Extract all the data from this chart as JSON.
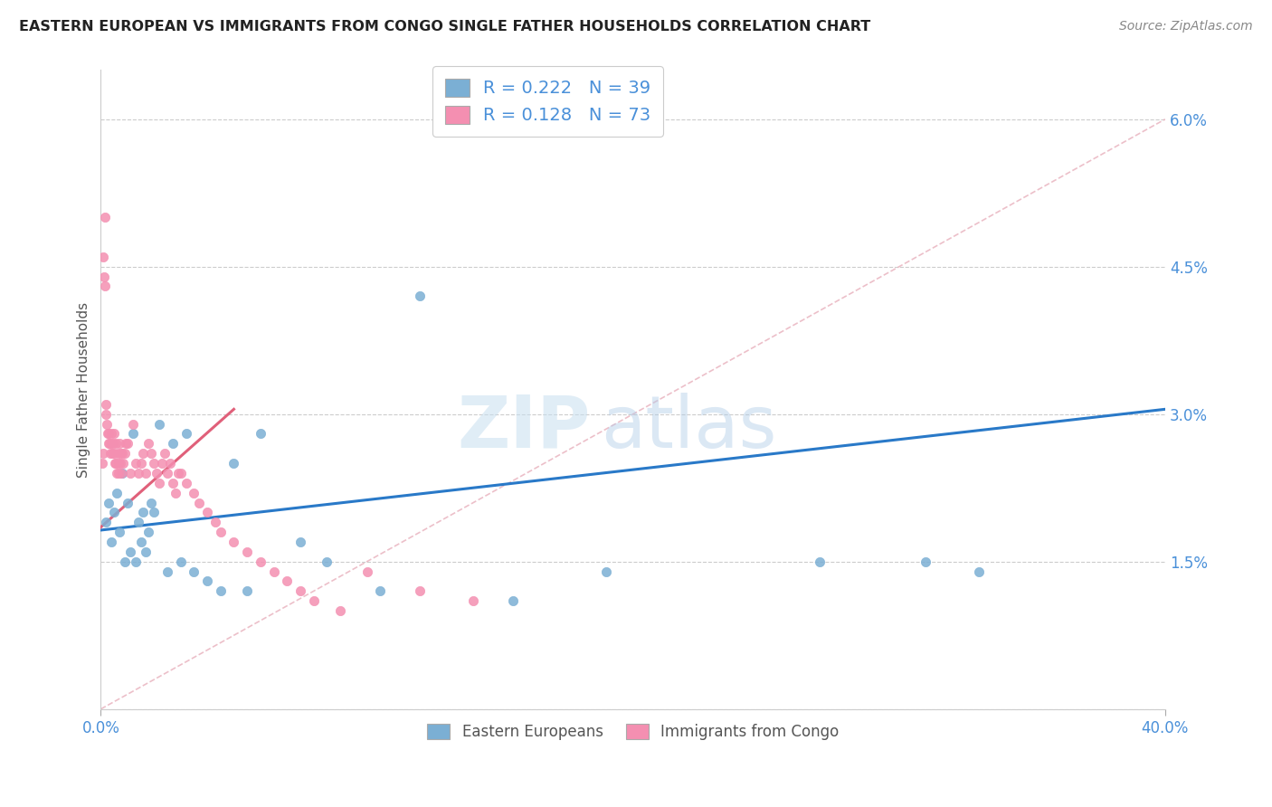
{
  "title": "EASTERN EUROPEAN VS IMMIGRANTS FROM CONGO SINGLE FATHER HOUSEHOLDS CORRELATION CHART",
  "source": "Source: ZipAtlas.com",
  "ylabel": "Single Father Households",
  "watermark_zip": "ZIP",
  "watermark_atlas": "atlas",
  "legend_r1": "R = 0.222   N = 39",
  "legend_r2": "R = 0.128   N = 73",
  "xlim": [
    0.0,
    40.0
  ],
  "ylim": [
    0.0,
    6.5
  ],
  "yticks": [
    0.0,
    1.5,
    3.0,
    4.5,
    6.0
  ],
  "ytick_labels": [
    "",
    "1.5%",
    "3.0%",
    "4.5%",
    "6.0%"
  ],
  "blue_scatter_x": [
    0.2,
    0.3,
    0.4,
    0.5,
    0.6,
    0.7,
    0.8,
    0.9,
    1.0,
    1.1,
    1.2,
    1.3,
    1.4,
    1.5,
    1.6,
    1.7,
    1.8,
    1.9,
    2.0,
    2.2,
    2.5,
    2.7,
    3.0,
    3.2,
    3.5,
    4.0,
    4.5,
    5.0,
    5.5,
    6.0,
    7.5,
    8.5,
    10.5,
    12.0,
    15.5,
    19.0,
    27.0,
    31.0,
    33.0
  ],
  "blue_scatter_y": [
    1.9,
    2.1,
    1.7,
    2.0,
    2.2,
    1.8,
    2.4,
    1.5,
    2.1,
    1.6,
    2.8,
    1.5,
    1.9,
    1.7,
    2.0,
    1.6,
    1.8,
    2.1,
    2.0,
    2.9,
    1.4,
    2.7,
    1.5,
    2.8,
    1.4,
    1.3,
    1.2,
    2.5,
    1.2,
    2.8,
    1.7,
    1.5,
    1.2,
    4.2,
    1.1,
    1.4,
    1.5,
    1.5,
    1.4
  ],
  "pink_scatter_x": [
    0.05,
    0.08,
    0.1,
    0.12,
    0.15,
    0.18,
    0.2,
    0.22,
    0.25,
    0.28,
    0.3,
    0.32,
    0.35,
    0.38,
    0.4,
    0.42,
    0.45,
    0.48,
    0.5,
    0.52,
    0.55,
    0.58,
    0.6,
    0.62,
    0.65,
    0.68,
    0.7,
    0.72,
    0.75,
    0.78,
    0.8,
    0.85,
    0.9,
    0.95,
    1.0,
    1.1,
    1.2,
    1.3,
    1.4,
    1.5,
    1.6,
    1.7,
    1.8,
    1.9,
    2.0,
    2.1,
    2.2,
    2.3,
    2.4,
    2.5,
    2.6,
    2.7,
    2.8,
    2.9,
    3.0,
    3.2,
    3.5,
    3.7,
    4.0,
    4.3,
    4.5,
    5.0,
    5.5,
    6.0,
    6.5,
    7.0,
    7.5,
    8.0,
    9.0,
    10.0,
    12.0,
    14.0,
    0.15
  ],
  "pink_scatter_y": [
    2.5,
    2.6,
    4.6,
    4.4,
    4.3,
    3.1,
    3.0,
    2.9,
    2.8,
    2.7,
    2.8,
    2.7,
    2.6,
    2.8,
    2.7,
    2.6,
    2.7,
    2.8,
    2.6,
    2.5,
    2.7,
    2.5,
    2.4,
    2.6,
    2.5,
    2.4,
    2.7,
    2.6,
    2.5,
    2.4,
    2.6,
    2.5,
    2.6,
    2.7,
    2.7,
    2.4,
    2.9,
    2.5,
    2.4,
    2.5,
    2.6,
    2.4,
    2.7,
    2.6,
    2.5,
    2.4,
    2.3,
    2.5,
    2.6,
    2.4,
    2.5,
    2.3,
    2.2,
    2.4,
    2.4,
    2.3,
    2.2,
    2.1,
    2.0,
    1.9,
    1.8,
    1.7,
    1.6,
    1.5,
    1.4,
    1.3,
    1.2,
    1.1,
    1.0,
    1.4,
    1.2,
    1.1,
    5.0
  ],
  "blue_scatter_x_outlier": [
    11.5
  ],
  "blue_scatter_y_outlier": [
    4.2
  ],
  "blue_color": "#7bafd4",
  "pink_color": "#f48fb1",
  "blue_line_color": "#2979c8",
  "pink_line_color": "#e0607a",
  "ref_line_color": "#d0d0d0",
  "title_color": "#222222",
  "axis_label_color": "#555555",
  "tick_color": "#4a90d9",
  "background_color": "#ffffff",
  "blue_line_start_y": 1.82,
  "blue_line_end_y": 3.05,
  "pink_line_start_x": 0.0,
  "pink_line_start_y": 1.85,
  "pink_line_end_x": 5.0,
  "pink_line_end_y": 3.05
}
